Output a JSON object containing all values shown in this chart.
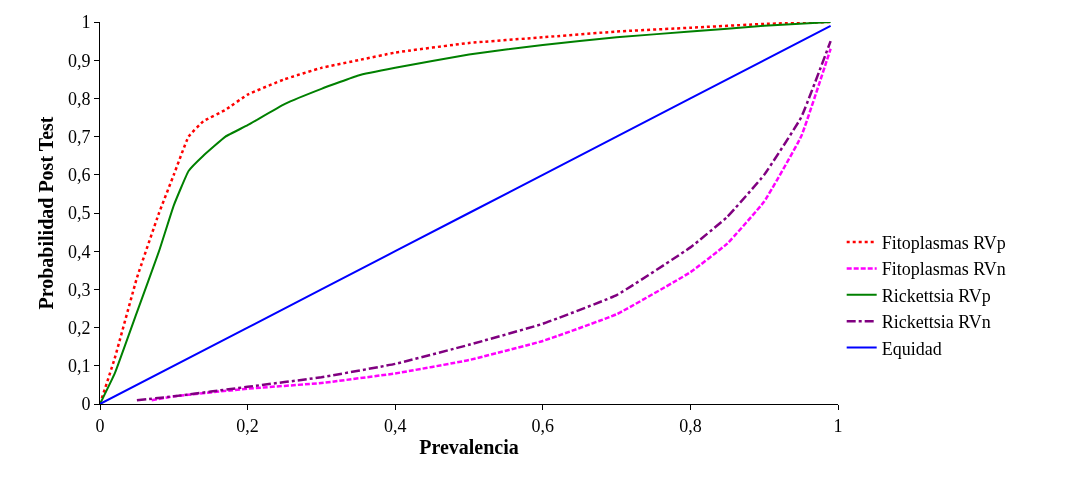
{
  "chart_data": {
    "type": "line",
    "xlabel": "Prevalencia",
    "ylabel": "Probabilidad Post Test",
    "xlim": [
      0,
      1
    ],
    "ylim": [
      0,
      1
    ],
    "xticks": [
      0,
      {
        "value": 0.2,
        "label": "0,2"
      },
      {
        "value": 0.4,
        "label": "0,4"
      },
      {
        "value": 0.6,
        "label": "0,6"
      },
      {
        "value": 0.8,
        "label": "0,8"
      },
      1
    ],
    "yticks": [
      0,
      {
        "value": 0.1,
        "label": "0,1"
      },
      {
        "value": 0.2,
        "label": "0,2"
      },
      {
        "value": 0.3,
        "label": "0,3"
      },
      {
        "value": 0.4,
        "label": "0,4"
      },
      {
        "value": 0.5,
        "label": "0,5"
      },
      {
        "value": 0.6,
        "label": "0,6"
      },
      {
        "value": 0.7,
        "label": "0,7"
      },
      {
        "value": 0.8,
        "label": "0,8"
      },
      {
        "value": 0.9,
        "label": "0,9"
      },
      1
    ],
    "legend": "right",
    "marker": "none",
    "series": [
      {
        "name": "Fitoplasmas RVp",
        "color": "#ff0000",
        "line_style": "dotted",
        "x": [
          0,
          0.02,
          0.05,
          0.08,
          0.1,
          0.12,
          0.14,
          0.17,
          0.2,
          0.25,
          0.3,
          0.35,
          0.4,
          0.5,
          0.6,
          0.7,
          0.8,
          0.9,
          0.99
        ],
        "values": [
          0,
          0.12,
          0.33,
          0.5,
          0.6,
          0.7,
          0.74,
          0.77,
          0.81,
          0.85,
          0.88,
          0.9,
          0.92,
          0.945,
          0.96,
          0.975,
          0.985,
          0.995,
          1.0
        ]
      },
      {
        "name": "Fitoplasmas RVn",
        "color": "#ff00ff",
        "line_style": "dashed",
        "x": [
          0.07,
          0.1,
          0.2,
          0.3,
          0.4,
          0.5,
          0.6,
          0.7,
          0.8,
          0.85,
          0.9,
          0.95,
          0.99
        ],
        "values": [
          0.01,
          0.02,
          0.04,
          0.055,
          0.08,
          0.115,
          0.165,
          0.235,
          0.345,
          0.42,
          0.53,
          0.7,
          0.93
        ]
      },
      {
        "name": "Rickettsia RVp",
        "color": "#008000",
        "line_style": "solid",
        "x": [
          0,
          0.02,
          0.05,
          0.08,
          0.1,
          0.12,
          0.14,
          0.17,
          0.2,
          0.25,
          0.3,
          0.35,
          0.4,
          0.5,
          0.6,
          0.7,
          0.8,
          0.9,
          0.99
        ],
        "values": [
          0,
          0.08,
          0.24,
          0.4,
          0.52,
          0.61,
          0.65,
          0.7,
          0.73,
          0.785,
          0.825,
          0.86,
          0.88,
          0.915,
          0.94,
          0.96,
          0.975,
          0.99,
          1.0
        ]
      },
      {
        "name": "Rickettsia RVn",
        "color": "#800080",
        "line_style": "dashdot",
        "x": [
          0.05,
          0.1,
          0.2,
          0.3,
          0.4,
          0.5,
          0.6,
          0.7,
          0.8,
          0.85,
          0.9,
          0.95,
          0.99
        ],
        "values": [
          0.01,
          0.02,
          0.045,
          0.07,
          0.105,
          0.155,
          0.21,
          0.285,
          0.41,
          0.49,
          0.6,
          0.75,
          0.95
        ]
      },
      {
        "name": "Equidad",
        "color": "#0000ff",
        "line_style": "solid",
        "x": [
          0,
          0.2,
          0.4,
          0.6,
          0.8,
          0.99
        ],
        "values": [
          0,
          0.2,
          0.4,
          0.6,
          0.8,
          0.99
        ]
      }
    ]
  }
}
